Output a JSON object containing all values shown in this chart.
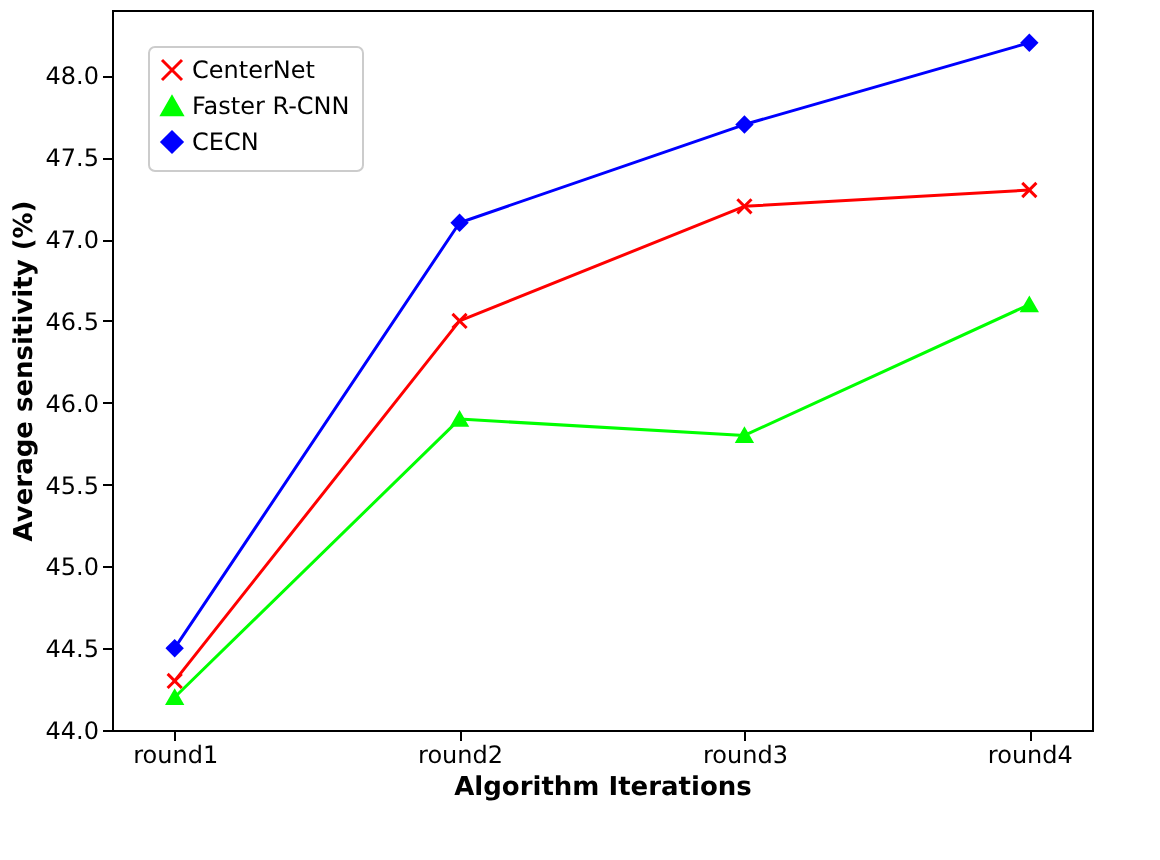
{
  "chart_data": {
    "type": "line",
    "xlabel": "Algorithm Iterations",
    "ylabel": "Average sensitivity (%)",
    "categories": [
      "round1",
      "round2",
      "round3",
      "round4"
    ],
    "series": [
      {
        "name": "CenterNet",
        "color": "#ff0000",
        "marker": "cross",
        "values": [
          44.3,
          46.5,
          47.2,
          47.3
        ]
      },
      {
        "name": "Faster R-CNN",
        "color": "#00ff00",
        "marker": "triangle",
        "values": [
          44.2,
          45.9,
          45.8,
          46.6
        ]
      },
      {
        "name": "CECN",
        "color": "#0000ff",
        "marker": "diamond",
        "values": [
          44.5,
          47.1,
          47.7,
          48.2
        ]
      }
    ],
    "ylim": [
      44.0,
      48.4
    ],
    "yticks": [
      {
        "value": 44,
        "label": "44.0"
      },
      44.5,
      {
        "value": 45,
        "label": "45.0"
      },
      45.5,
      {
        "value": 46,
        "label": "46.0"
      },
      46.5,
      {
        "value": 47,
        "label": "47.0"
      },
      47.5,
      {
        "value": 48,
        "label": "48.0"
      }
    ],
    "grid": false,
    "legend": "top left",
    "line_style": "solid"
  }
}
